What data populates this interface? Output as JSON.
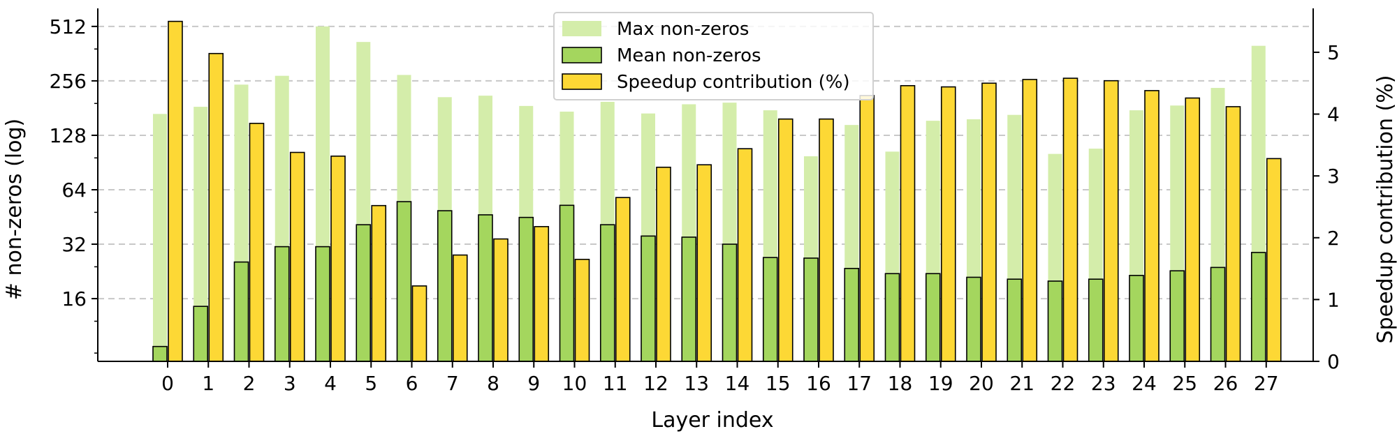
{
  "chart_data": {
    "type": "bar",
    "categories": [
      "0",
      "1",
      "2",
      "3",
      "4",
      "5",
      "6",
      "7",
      "8",
      "9",
      "10",
      "11",
      "12",
      "13",
      "14",
      "15",
      "16",
      "17",
      "18",
      "19",
      "20",
      "21",
      "22",
      "23",
      "24",
      "25",
      "26",
      "27"
    ],
    "xlabel": "Layer index",
    "ylabel": "# non-zeros (log)",
    "y2label": "Speedup contribution (%)",
    "y_scale": "log2",
    "ylim": [
      7.2,
      600
    ],
    "y_ticks": [
      16,
      32,
      64,
      128,
      256,
      512
    ],
    "y_tick_labels": [
      "16",
      "32",
      "64",
      "128",
      "256",
      "512"
    ],
    "y2lim": [
      0,
      5.62
    ],
    "y2_ticks": [
      0,
      1,
      2,
      3,
      4,
      5
    ],
    "y2_tick_labels": [
      "0",
      "1",
      "2",
      "3",
      "4",
      "5"
    ],
    "grid": "horizontal dashed",
    "legend_position": "top-center",
    "series": [
      {
        "name": "Max non-zeros",
        "axis": "left",
        "color": "#d4edaa",
        "values": [
          168,
          184,
          244,
          273,
          512,
          420,
          276,
          208,
          212,
          186,
          173,
          196,
          169,
          190,
          194,
          176,
          98,
          146,
          104,
          154,
          157,
          166,
          101,
          108,
          176,
          187,
          234,
          400
        ]
      },
      {
        "name": "Mean non-zeros",
        "axis": "left",
        "color": "#a4d65e",
        "values": [
          8.7,
          14.5,
          25.5,
          31,
          31,
          41,
          55,
          49,
          46.5,
          45,
          52.5,
          41,
          35.5,
          35,
          32,
          27,
          26.8,
          23.5,
          22,
          22,
          21,
          20.5,
          20,
          20.5,
          21.5,
          22.8,
          23.8,
          28.8
        ]
      },
      {
        "name": "Speedup contribution (%)",
        "axis": "right",
        "color": "#fdd835",
        "values": [
          5.5,
          4.98,
          3.85,
          3.38,
          3.32,
          2.52,
          1.22,
          1.72,
          1.98,
          2.18,
          1.65,
          2.65,
          3.14,
          3.18,
          3.44,
          3.92,
          3.92,
          4.3,
          4.46,
          4.44,
          4.5,
          4.56,
          4.58,
          4.54,
          4.38,
          4.26,
          4.12,
          3.28
        ]
      }
    ]
  }
}
